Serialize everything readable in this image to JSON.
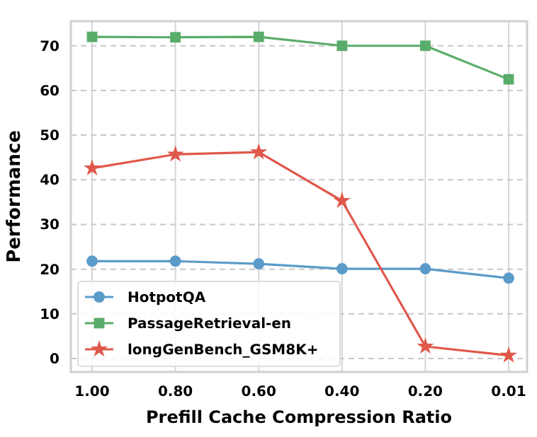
{
  "chart_data": {
    "type": "line",
    "xlabel": "Prefill Cache Compression Ratio",
    "ylabel": "Performance",
    "categories": [
      "1.00",
      "0.80",
      "0.60",
      "0.40",
      "0.20",
      "0.01"
    ],
    "series": [
      {
        "name": "HotpotQA",
        "color": "#5b9bc9",
        "marker": "circle",
        "values": [
          21.8,
          21.8,
          21.2,
          20.1,
          20.1,
          18.0
        ]
      },
      {
        "name": "PassageRetrieval-en",
        "color": "#5aac6a",
        "marker": "square",
        "values": [
          72.0,
          71.9,
          72.0,
          70.0,
          70.0,
          62.5
        ]
      },
      {
        "name": "longGenBench_GSM8K+",
        "color": "#e0584a",
        "marker": "star",
        "values": [
          42.6,
          45.7,
          46.2,
          35.3,
          2.7,
          0.7
        ]
      }
    ],
    "ylim": [
      -3,
      75.5
    ],
    "yticks": [
      0,
      10,
      20,
      30,
      40,
      50,
      60,
      70
    ],
    "grid": true,
    "legend": "bottom left"
  }
}
